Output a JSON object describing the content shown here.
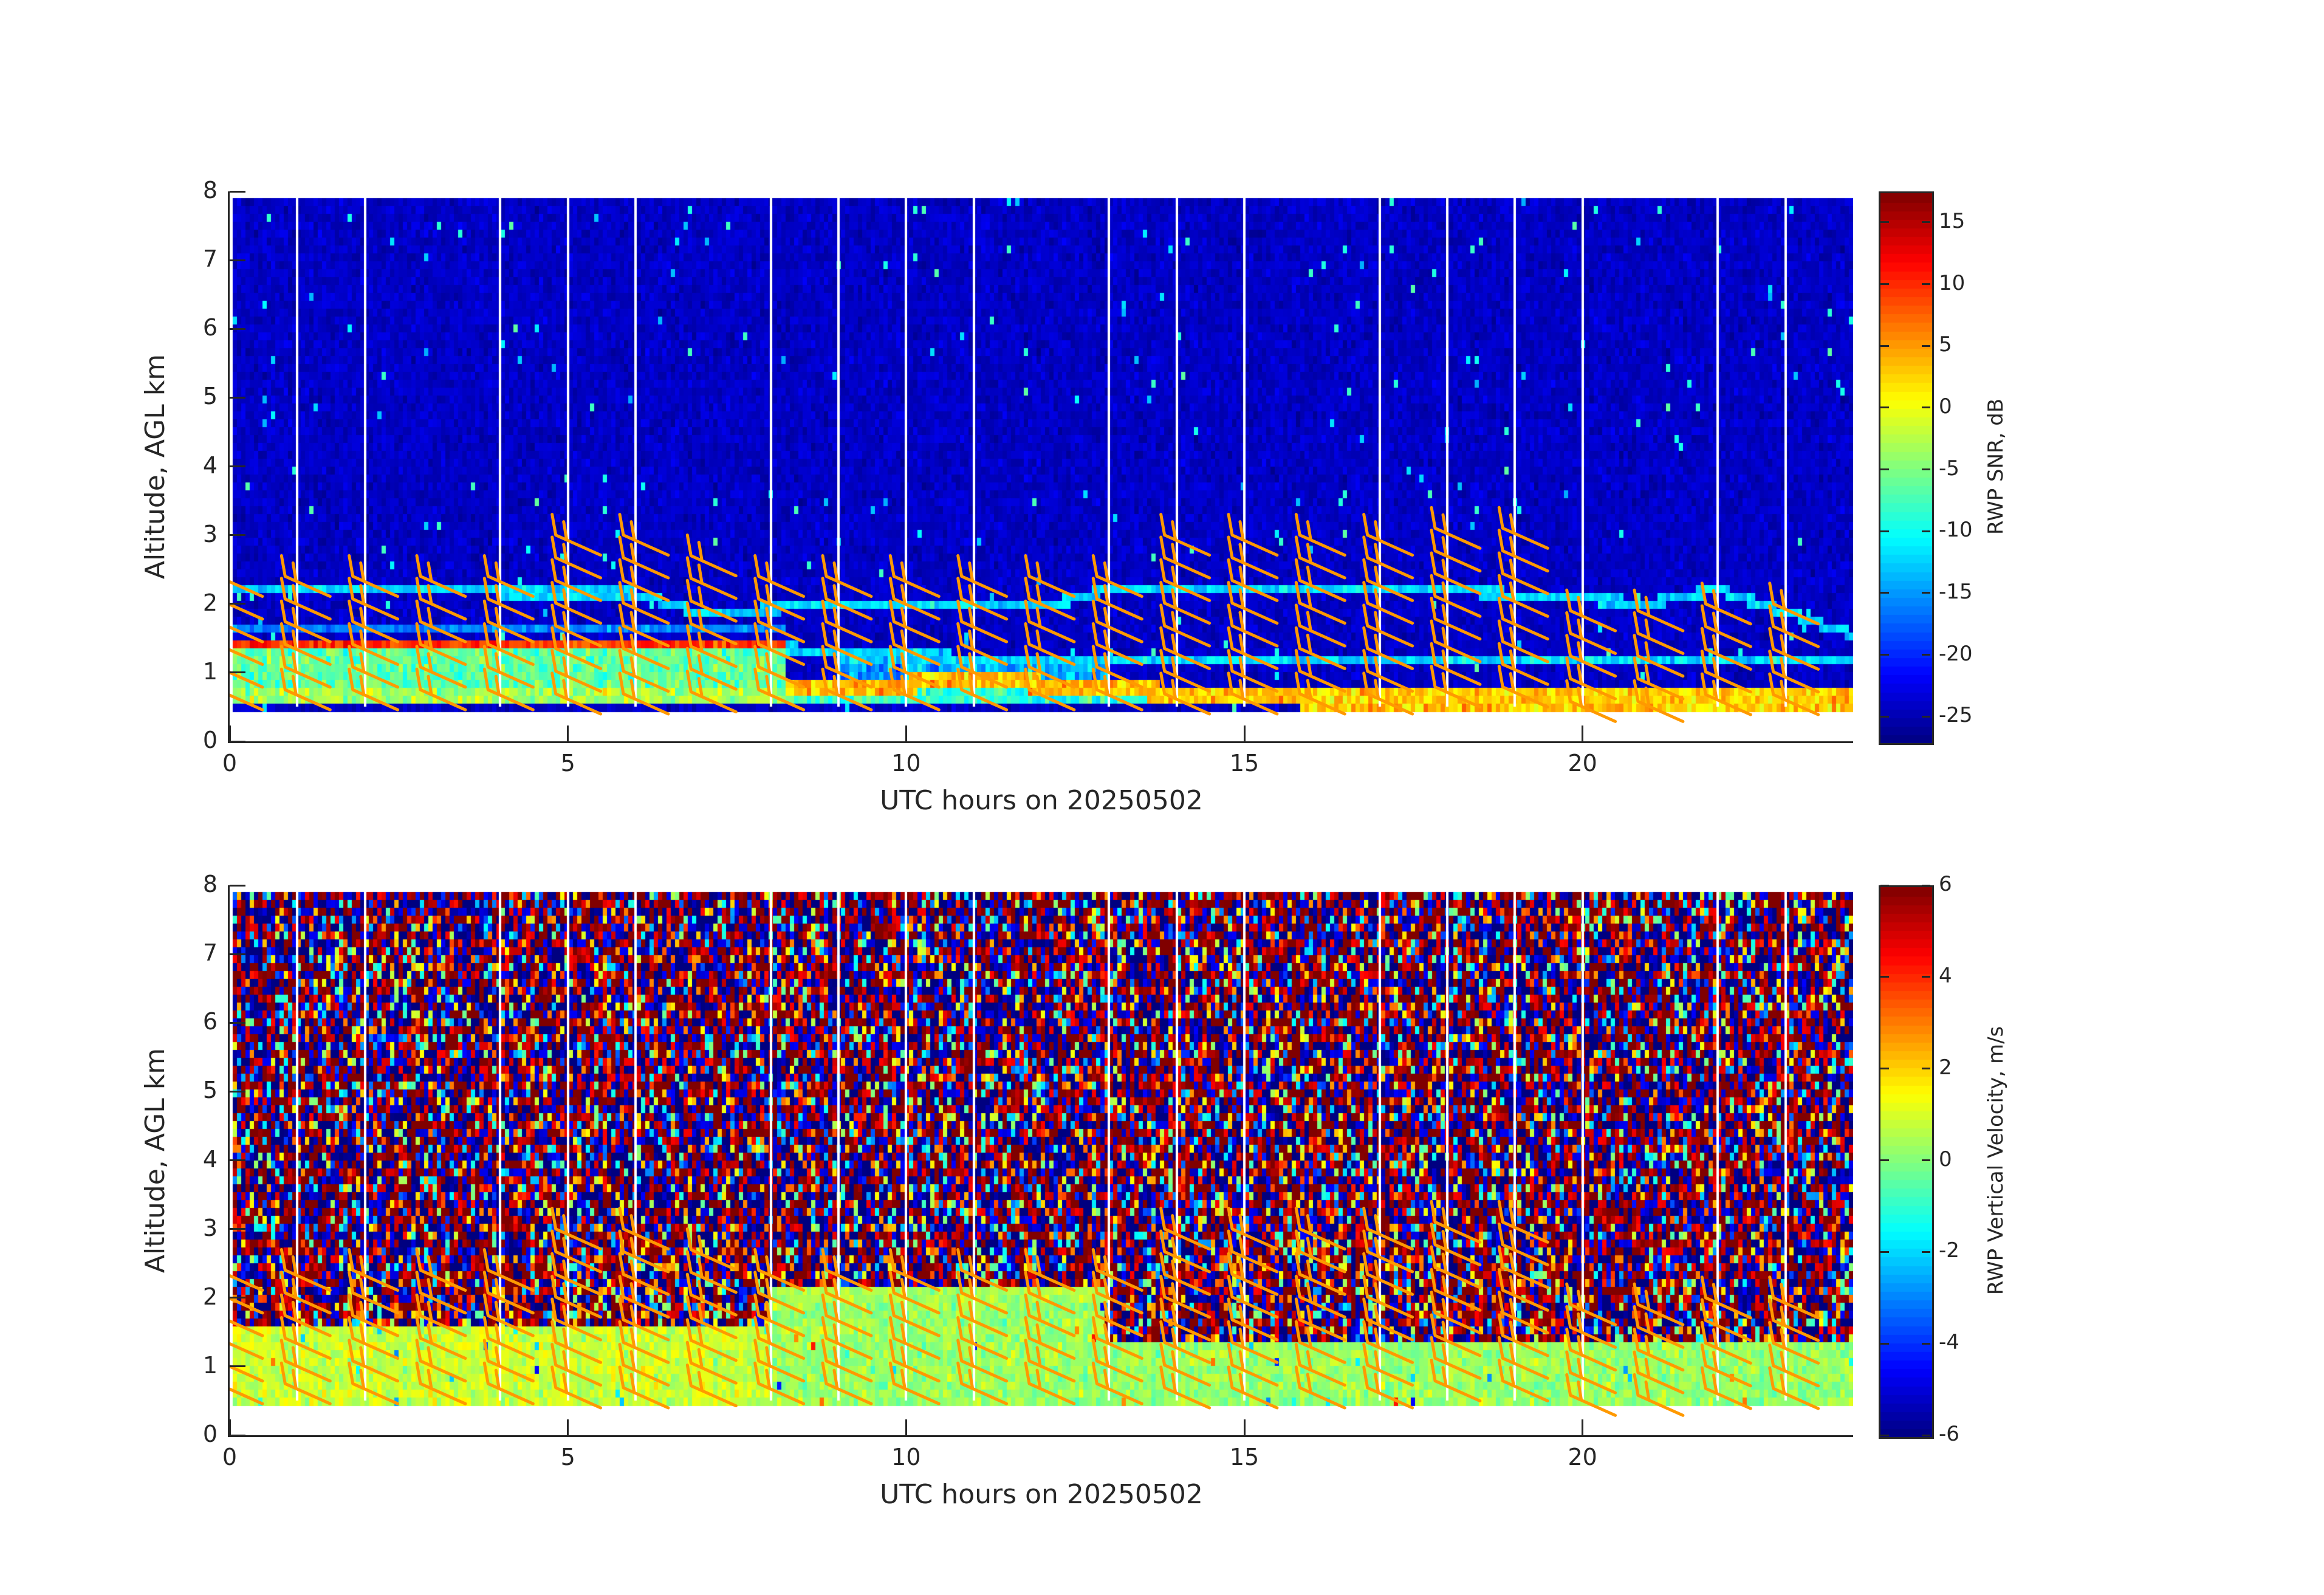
{
  "chart_data": [
    {
      "type": "heatmap",
      "title": "",
      "xlabel": "UTC hours on 20250502",
      "ylabel": "Altitude, AGL km",
      "xlim": [
        0,
        24
      ],
      "ylim": [
        0,
        8
      ],
      "xticks": [
        0,
        5,
        10,
        15,
        20
      ],
      "yticks": [
        0,
        1,
        2,
        3,
        4,
        5,
        6,
        7,
        8
      ],
      "colorbar": {
        "label": "RWP SNR, dB",
        "limits": [
          -27,
          17.5
        ],
        "ticks": [
          15,
          10,
          5,
          0,
          -5,
          -10,
          -15,
          -20,
          -25
        ],
        "colormap": "jet"
      },
      "data_altitude_range_km": [
        0.5,
        7.9
      ],
      "time_gaps_utc_hours": [
        1,
        2,
        4,
        5,
        6,
        8,
        9,
        10,
        11,
        13,
        14,
        15,
        17,
        18,
        19,
        20,
        22,
        23
      ],
      "layers": [
        {
          "feature": "strong SNR layer",
          "altitude_km": 1.4,
          "time_range_utc": [
            0,
            8
          ],
          "snr_db": 10
        },
        {
          "feature": "boundary-layer echoes",
          "altitude_km": [
            0.5,
            1.3
          ],
          "time_range_utc": [
            0,
            9
          ],
          "snr_db": -5
        },
        {
          "feature": "descending layer",
          "altitude_km": [
            1.2,
            0.6
          ],
          "time_range_utc": [
            9,
            24
          ],
          "snr_db": 0
        },
        {
          "feature": "upper clutter layer",
          "altitude_km": 2.2,
          "time_range_utc": [
            0,
            24
          ],
          "snr_db": -12
        },
        {
          "feature": "background",
          "altitude_km": [
            2.5,
            7.9
          ],
          "time_range_utc": [
            0,
            24
          ],
          "snr_db": -24
        }
      ],
      "wind_barbs": {
        "color": "#FF9900",
        "times_utc": [
          0,
          1,
          2,
          3,
          4,
          5,
          6,
          7,
          8,
          9,
          10,
          11,
          12,
          13,
          14,
          15,
          16,
          17,
          18,
          19,
          20,
          21,
          22,
          23
        ],
        "top_altitude_km": [
          2.4,
          2.4,
          2.4,
          2.4,
          2.4,
          3.0,
          3.0,
          2.7,
          2.4,
          2.4,
          2.4,
          2.4,
          2.4,
          2.4,
          3.0,
          3.0,
          3.0,
          3.0,
          3.1,
          3.1,
          1.9,
          1.9,
          2.0,
          2.0
        ],
        "altitude_step_km": 0.33
      }
    },
    {
      "type": "heatmap",
      "title": "",
      "xlabel": "UTC hours on 20250502",
      "ylabel": "Altitude, AGL km",
      "xlim": [
        0,
        24
      ],
      "ylim": [
        0,
        8
      ],
      "xticks": [
        0,
        5,
        10,
        15,
        20
      ],
      "yticks": [
        0,
        1,
        2,
        3,
        4,
        5,
        6,
        7,
        8
      ],
      "colorbar": {
        "label": "RWP Vertical Velocity, m/s",
        "limits": [
          -6,
          6
        ],
        "ticks": [
          6,
          4,
          2,
          0,
          -2,
          -4,
          -6
        ],
        "colormap": "jet"
      },
      "data_altitude_range_km": [
        0.5,
        7.9
      ],
      "time_gaps_utc_hours": [
        1,
        2,
        4,
        5,
        6,
        8,
        9,
        10,
        11,
        13,
        14,
        15,
        17,
        18,
        19,
        20,
        22,
        23
      ],
      "layers": [
        {
          "feature": "coherent low-level velocities",
          "altitude_km": [
            0.5,
            1.6
          ],
          "time_range_utc": [
            0,
            8
          ],
          "velocity_ms": 0.5
        },
        {
          "feature": "coherent low-level velocities",
          "altitude_km": [
            0.5,
            1.9
          ],
          "time_range_utc": [
            8,
            13
          ],
          "velocity_ms": 0.2
        },
        {
          "feature": "coherent low-level velocities",
          "altitude_km": [
            0.5,
            1.2
          ],
          "time_range_utc": [
            13,
            24
          ],
          "velocity_ms": 0.0
        },
        {
          "feature": "noise",
          "altitude_km": [
            1.6,
            7.9
          ],
          "time_range_utc": [
            0,
            24
          ],
          "velocity_ms": "random -6..6"
        }
      ],
      "wind_barbs": {
        "color": "#FF9900",
        "times_utc": [
          0,
          1,
          2,
          3,
          4,
          5,
          6,
          7,
          8,
          9,
          10,
          11,
          12,
          13,
          14,
          15,
          16,
          17,
          18,
          19,
          20,
          21,
          22,
          23
        ],
        "top_altitude_km": [
          2.4,
          2.4,
          2.4,
          2.4,
          2.4,
          3.0,
          3.0,
          2.7,
          2.4,
          2.4,
          2.4,
          2.4,
          2.4,
          2.4,
          3.0,
          3.0,
          3.0,
          3.0,
          3.1,
          3.1,
          1.9,
          1.9,
          2.0,
          2.0
        ],
        "altitude_step_km": 0.33
      }
    }
  ]
}
